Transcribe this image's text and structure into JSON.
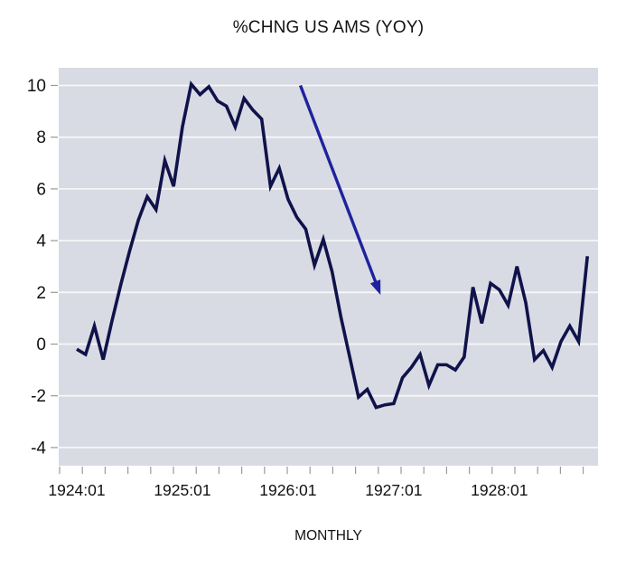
{
  "chart_data": {
    "type": "line",
    "title": "%CHNG US AMS (YOY)",
    "xlabel": "MONTHLY",
    "ylabel": "",
    "frequency": "MONTHLY",
    "x_tick_labels": [
      "1924:01",
      "1925:01",
      "1926:01",
      "1927:01",
      "1928:01"
    ],
    "y_ticks": [
      10,
      8,
      6,
      4,
      2,
      0,
      -2,
      -4
    ],
    "ylim": [
      -4.7,
      10.7
    ],
    "grid": "horizontal-white",
    "legend_position": "none",
    "series": [
      {
        "name": "%CHNG US AMS (YOY)",
        "start": "1924:01",
        "end": "1928:11",
        "values": [
          -0.2,
          -0.4,
          0.7,
          -0.6,
          0.9,
          2.3,
          3.6,
          4.8,
          5.7,
          5.2,
          7.1,
          6.1,
          8.4,
          10.05,
          9.65,
          9.95,
          9.4,
          9.2,
          8.4,
          9.5,
          9.05,
          8.7,
          6.1,
          6.8,
          5.6,
          4.9,
          4.45,
          3.05,
          4.05,
          2.8,
          1.05,
          -0.5,
          -2.05,
          -1.75,
          -2.45,
          -2.35,
          -2.3,
          -1.3,
          -0.9,
          -0.4,
          -1.6,
          -0.8,
          -0.8,
          -1.0,
          -0.5,
          2.2,
          0.8,
          2.35,
          2.1,
          1.5,
          3.0,
          1.6,
          -0.6,
          -0.25,
          -0.9,
          0.1,
          0.7,
          0.1,
          3.4
        ]
      }
    ],
    "annotation": {
      "type": "arrow",
      "direction": "down-right",
      "from": {
        "month_index": 25.4,
        "value": 10.0
      },
      "to": {
        "month_index": 34.5,
        "value": 1.9
      }
    },
    "colors": {
      "line": "#10124a",
      "arrow": "#1f229e",
      "plot_bg": "#d8dbe3",
      "grid": "#f7f7f7",
      "text": "#111111",
      "tick": "#9a9a9a"
    }
  }
}
